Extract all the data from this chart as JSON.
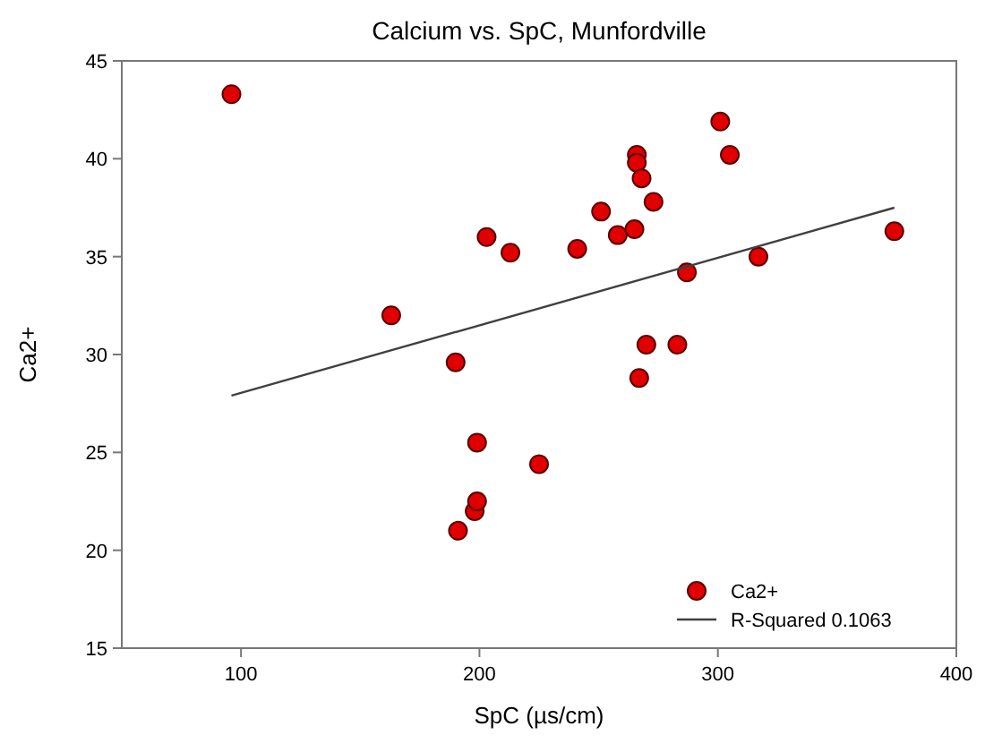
{
  "chart_data": {
    "type": "scatter",
    "title": "Calcium vs. SpC, Munfordville",
    "xlabel": "SpC (µs/cm)",
    "ylabel": "Ca2+",
    "xlim": [
      50,
      400
    ],
    "ylim": [
      15,
      45
    ],
    "xticks": [
      100,
      200,
      300,
      400
    ],
    "yticks": [
      15,
      20,
      25,
      30,
      35,
      40,
      45
    ],
    "grid": false,
    "legend": "bottom right",
    "marker": "circle",
    "series": [
      {
        "name": "Ca2+",
        "color": "#e00000",
        "x": [
          96,
          163,
          190,
          191,
          198,
          199,
          199,
          203,
          213,
          225,
          241,
          251,
          258,
          265,
          266,
          266,
          267,
          268,
          270,
          273,
          283,
          287,
          301,
          305,
          317,
          374
        ],
        "values": [
          43.3,
          32,
          29.6,
          21,
          22,
          22.5,
          25.5,
          36,
          35.2,
          24.4,
          35.4,
          37.3,
          36.1,
          36.4,
          40.2,
          39.8,
          28.8,
          39,
          30.5,
          37.8,
          30.5,
          34.2,
          41.9,
          40.2,
          35,
          36.3
        ]
      },
      {
        "name": "R-Squared 0.1063",
        "type": "line",
        "color": "#404040",
        "line_style": "solid",
        "marker": "none",
        "x": [
          96,
          374
        ],
        "values": [
          27.9,
          37.5
        ]
      }
    ]
  }
}
